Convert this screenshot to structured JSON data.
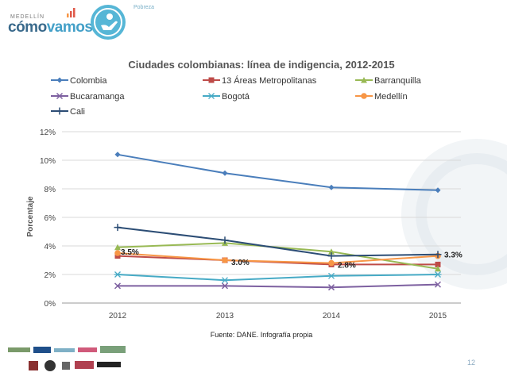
{
  "branding": {
    "city": "MEDELLÍN",
    "name_part1": "cómo",
    "name_part2": "vamos",
    "section": "Pobreza"
  },
  "page_number": "12",
  "colors": {
    "colombia": "#4a7ebb",
    "areas13": "#be4b48",
    "barranquilla": "#98b954",
    "bucaramanga": "#7d60a0",
    "bogota": "#46aac5",
    "medellin": "#f79646",
    "cali": "#2c4d75"
  },
  "chart_data": {
    "type": "line",
    "title": "Ciudades colombianas: línea de  indigencia, 2012-2015",
    "ylabel": "Porcentaje",
    "xlabel": "",
    "source": "Fuente: DANE. Infografía propia",
    "categories": [
      "2012",
      "2013",
      "2014",
      "2015"
    ],
    "ylim": [
      0,
      12
    ],
    "yticks": [
      "0%",
      "2%",
      "4%",
      "6%",
      "8%",
      "10%",
      "12%"
    ],
    "ytick_values": [
      0,
      2,
      4,
      6,
      8,
      10,
      12
    ],
    "legend_position": "top",
    "series": [
      {
        "name": "Colombia",
        "values": [
          10.4,
          9.1,
          8.1,
          7.9
        ],
        "color_key": "colombia",
        "marker": "diamond"
      },
      {
        "name": "13 Áreas Metropolitanas",
        "values": [
          3.3,
          3.0,
          2.7,
          2.7
        ],
        "color_key": "areas13",
        "marker": "square"
      },
      {
        "name": "Barranquilla",
        "values": [
          3.9,
          4.2,
          3.6,
          2.4
        ],
        "color_key": "barranquilla",
        "marker": "triangle"
      },
      {
        "name": "Bucaramanga",
        "values": [
          1.2,
          1.2,
          1.1,
          1.3
        ],
        "color_key": "bucaramanga",
        "marker": "x"
      },
      {
        "name": "Bogotá",
        "values": [
          2.0,
          1.6,
          1.9,
          2.0
        ],
        "color_key": "bogota",
        "marker": "star"
      },
      {
        "name": "Medellín",
        "values": [
          3.5,
          3.0,
          2.8,
          3.3
        ],
        "color_key": "medellin",
        "marker": "circle"
      },
      {
        "name": "Cali",
        "values": [
          5.3,
          4.4,
          3.3,
          3.4
        ],
        "color_key": "cali",
        "marker": "plus"
      }
    ],
    "annotations": [
      {
        "series": "Medellín",
        "index": 0,
        "text": "3.5%"
      },
      {
        "series": "Medellín",
        "index": 1,
        "text": "3.0%"
      },
      {
        "series": "Medellín",
        "index": 2,
        "text": "2.8%"
      },
      {
        "series": "Medellín",
        "index": 3,
        "text": "3.3%"
      }
    ]
  }
}
